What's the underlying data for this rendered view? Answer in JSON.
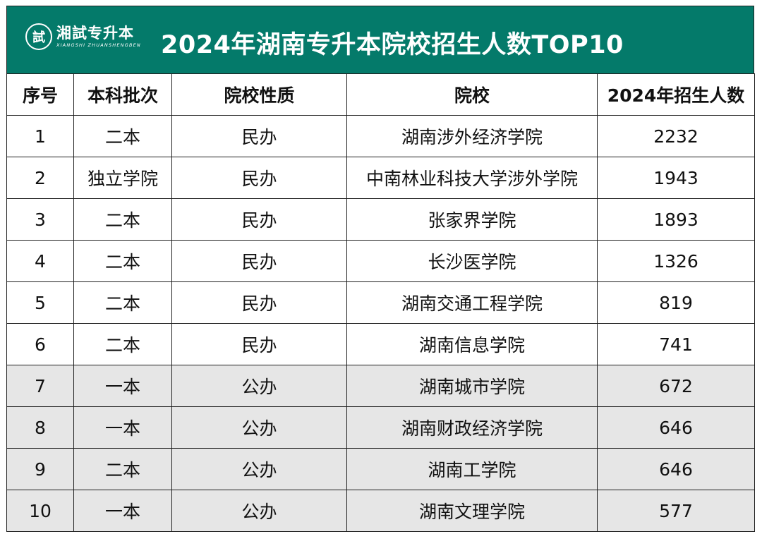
{
  "header": {
    "logo_glyph": "試",
    "logo_name": "湘試专升本",
    "logo_subtitle": "XIANGSHI ZHUANSHENGBEN",
    "title": "2024年湖南专升本院校招生人数TOP10",
    "background_color": "#047a6a"
  },
  "table": {
    "columns": [
      "序号",
      "本科批次",
      "院校性质",
      "院校",
      "2024年招生人数"
    ],
    "rows": [
      {
        "rank": "1",
        "batch": "二本",
        "type": "民办",
        "school": "湖南涉外经济学院",
        "count": "2232"
      },
      {
        "rank": "2",
        "batch": "独立学院",
        "type": "民办",
        "school": "中南林业科技大学涉外学院",
        "count": "1943"
      },
      {
        "rank": "3",
        "batch": "二本",
        "type": "民办",
        "school": "张家界学院",
        "count": "1893"
      },
      {
        "rank": "4",
        "batch": "二本",
        "type": "民办",
        "school": "长沙医学院",
        "count": "1326"
      },
      {
        "rank": "5",
        "batch": "二本",
        "type": "民办",
        "school": "湖南交通工程学院",
        "count": "819"
      },
      {
        "rank": "6",
        "batch": "二本",
        "type": "民办",
        "school": "湖南信息学院",
        "count": "741"
      },
      {
        "rank": "7",
        "batch": "一本",
        "type": "公办",
        "school": "湖南城市学院",
        "count": "672"
      },
      {
        "rank": "8",
        "batch": "一本",
        "type": "公办",
        "school": "湖南财政经济学院",
        "count": "646"
      },
      {
        "rank": "9",
        "batch": "二本",
        "type": "公办",
        "school": "湖南工学院",
        "count": "646"
      },
      {
        "rank": "10",
        "batch": "一本",
        "type": "公办",
        "school": "湖南文理学院",
        "count": "577"
      }
    ],
    "public_row_color": "#e6e6e6"
  }
}
